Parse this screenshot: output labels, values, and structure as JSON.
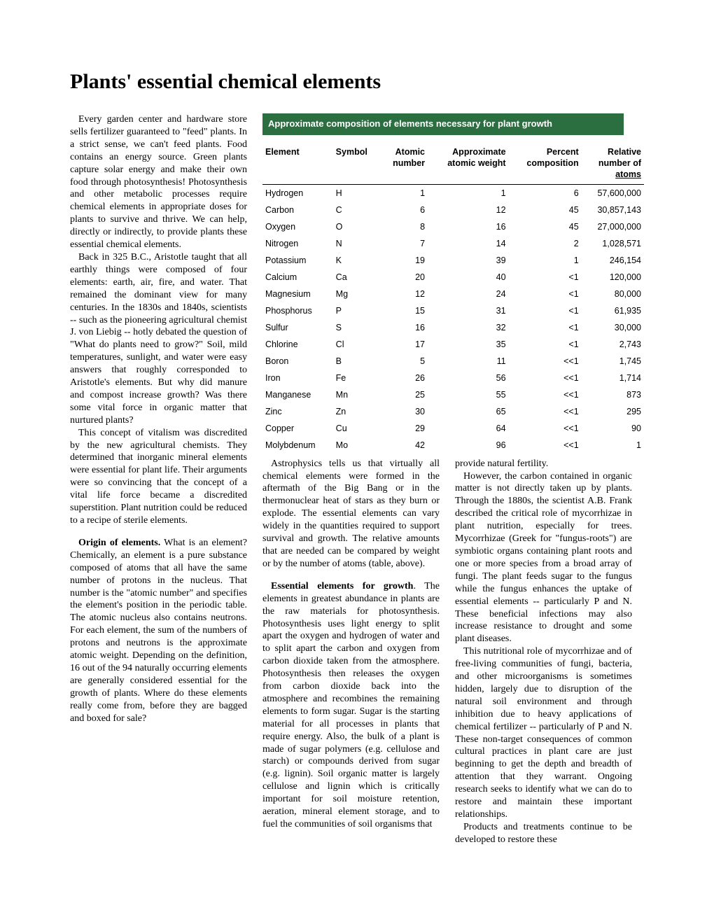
{
  "title": "Plants' essential chemical elements",
  "table": {
    "title": "Approximate composition of elements necessary for plant growth",
    "headers": {
      "element": "Element",
      "symbol": "Symbol",
      "atomic_number_l1": "Atomic",
      "atomic_number_l2": "number",
      "approx_weight_l1": "Approximate",
      "approx_weight_l2": "atomic weight",
      "percent_l1": "Percent",
      "percent_l2": "composition",
      "relative_l1": "Relative",
      "relative_l2": "number of",
      "relative_l3": "atoms"
    },
    "rows": [
      {
        "e": "Hydrogen",
        "s": "H",
        "an": "1",
        "aw": "1",
        "pc": "6",
        "ra": "57,600,000"
      },
      {
        "e": "Carbon",
        "s": "C",
        "an": "6",
        "aw": "12",
        "pc": "45",
        "ra": "30,857,143"
      },
      {
        "e": "Oxygen",
        "s": "O",
        "an": "8",
        "aw": "16",
        "pc": "45",
        "ra": "27,000,000"
      },
      {
        "e": "Nitrogen",
        "s": "N",
        "an": "7",
        "aw": "14",
        "pc": "2",
        "ra": "1,028,571"
      },
      {
        "e": "Potassium",
        "s": "K",
        "an": "19",
        "aw": "39",
        "pc": "1",
        "ra": "246,154"
      },
      {
        "e": "Calcium",
        "s": "Ca",
        "an": "20",
        "aw": "40",
        "pc": "<1",
        "ra": "120,000"
      },
      {
        "e": "Magnesium",
        "s": "Mg",
        "an": "12",
        "aw": "24",
        "pc": "<1",
        "ra": "80,000"
      },
      {
        "e": "Phosphorus",
        "s": "P",
        "an": "15",
        "aw": "31",
        "pc": "<1",
        "ra": "61,935"
      },
      {
        "e": "Sulfur",
        "s": "S",
        "an": "16",
        "aw": "32",
        "pc": "<1",
        "ra": "30,000"
      },
      {
        "e": "Chlorine",
        "s": "Cl",
        "an": "17",
        "aw": "35",
        "pc": "<1",
        "ra": "2,743"
      },
      {
        "e": "Boron",
        "s": "B",
        "an": "5",
        "aw": "11",
        "pc": "<<1",
        "ra": "1,745"
      },
      {
        "e": "Iron",
        "s": "Fe",
        "an": "26",
        "aw": "56",
        "pc": "<<1",
        "ra": "1,714"
      },
      {
        "e": "Manganese",
        "s": "Mn",
        "an": "25",
        "aw": "55",
        "pc": "<<1",
        "ra": "873"
      },
      {
        "e": "Zinc",
        "s": "Zn",
        "an": "30",
        "aw": "65",
        "pc": "<<1",
        "ra": "295"
      },
      {
        "e": "Copper",
        "s": "Cu",
        "an": "29",
        "aw": "64",
        "pc": "<<1",
        "ra": "90"
      },
      {
        "e": "Molybdenum",
        "s": "Mo",
        "an": "42",
        "aw": "96",
        "pc": "<<1",
        "ra": "1"
      }
    ]
  },
  "text": {
    "p1": "Every garden center and hardware store sells fertilizer guaranteed to \"feed\" plants. In a strict sense, we can't feed plants. Food contains an energy source. Green plants capture solar energy and make their own food through photosynthesis! Photosynthesis and other metabolic processes require chemical elements in appropriate doses for plants to survive and thrive. We can help, directly or indirectly, to provide plants these essential chemical elements.",
    "p2": "Back in 325 B.C., Aristotle taught that all earthly things were composed of four elements: earth, air, fire, and water. That remained the dominant view for many centuries. In the 1830s and 1840s, scientists -- such as the pioneering agricultural chemist J. von Liebig -- hotly debated the question of \"What do plants need to grow?\" Soil, mild temperatures, sunlight, and water were easy answers that roughly corresponded to Aristotle's elements. But why did manure and compost increase growth? Was there some vital force in organic matter that nurtured plants?",
    "p3": "This concept of vitalism was discredited by the new agricultural chemists. They determined that inorganic mineral elements were essential for plant life. Their arguments were so convincing that the concept of a vital life force became a discredited superstition. Plant nutrition could be reduced to a recipe of sterile elements.",
    "p4_bold": "Origin of elements.",
    "p4": " What is an element? Chemically, an element is a pure substance composed of atoms that all have the same number of protons in the nucleus. That number is the \"atomic number\" and specifies the element's position in the periodic table. The atomic nucleus also contains neutrons. For each element, the sum of the numbers of protons and neutrons is the approximate atomic weight. Depending on the definition, 16 out of the 94 naturally occurring elements are generally considered essential for the growth of plants. Where do these elements really come from, before they are bagged and boxed for sale?",
    "p5": "Astrophysics tells us that virtually all chemical elements were formed in the aftermath of the Big Bang or in the thermonuclear heat of stars as they burn or explode. The essential elements can vary widely in the quantities required to support survival and growth. The relative amounts that are needed can be compared by weight or by the number of atoms (table, above).",
    "p6_bold": "Essential elements for growth",
    "p6": ". The elements in greatest abundance in plants are the raw materials for photosynthesis. Photosynthesis uses light energy to split apart the oxygen and hydrogen of water and to split apart the carbon and oxygen from carbon dioxide taken from the atmosphere. Photosynthesis then releases the oxygen from carbon dioxide back into the atmosphere and recombines the remaining elements to form sugar. Sugar is the starting material for all processes in plants that require energy. Also, the bulk of a plant is made of sugar polymers (e.g. cellulose and starch) or compounds derived from sugar (e.g. lignin). Soil organic matter is largely cellulose and lignin which is critically important for soil moisture retention, aeration, mineral element storage, and to fuel the communities of soil organisms that",
    "p7a": "provide natural fertility.",
    "p7b": "However, the carbon contained in organic matter is not directly taken up by plants. Through the 1880s, the scientist A.B. Frank described the critical role of mycorrhizae in plant nutrition, especially for trees. Mycorrhizae (Greek for \"fungus-roots\") are symbiotic organs containing plant roots and one or more species from a broad array of fungi. The plant feeds sugar to the fungus while the fungus enhances the uptake of essential elements -- particularly P and N. These beneficial infections may also increase resistance to drought and some plant diseases.",
    "p8": "This nutritional role of mycorrhizae and of free-living communities of fungi, bacteria, and other microorganisms is sometimes hidden, largely due to disruption of the natural soil environment and through inhibition due to heavy applications of chemical fertilizer -- particularly of P and N. These non-target consequences of common cultural practices in plant care are just beginning to get the depth and breadth of attention that they warrant. Ongoing research seeks to identify what we can do to restore and maintain these important relationships.",
    "p9": "Products and treatments continue to be developed to restore these"
  },
  "colors": {
    "table_header_bg": "#2b6e3f",
    "table_header_fg": "#ffffff",
    "page_bg": "#ffffff",
    "text": "#000000"
  }
}
